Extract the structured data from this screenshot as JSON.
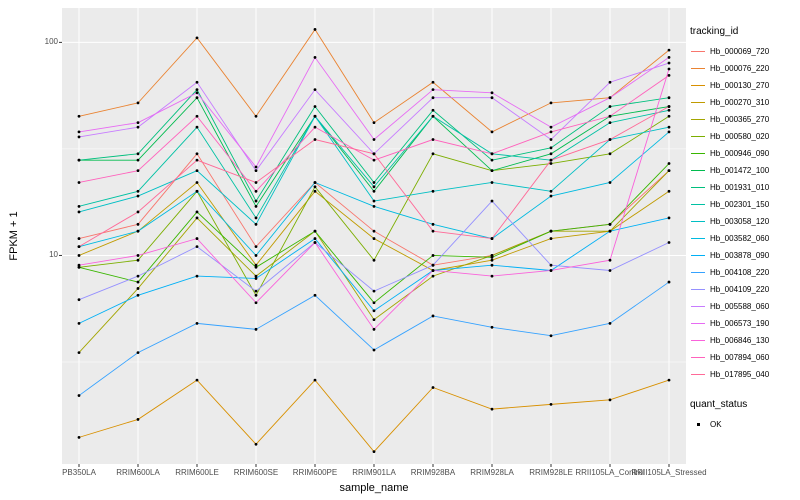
{
  "chart_data": {
    "type": "line",
    "title": "",
    "xlabel": "sample_name",
    "ylabel": "FPKM + 1",
    "y_scale": "log10",
    "ylim": [
      1.05,
      145
    ],
    "y_ticks": [
      "100",
      "10"
    ],
    "y_tick_values": [
      100,
      10
    ],
    "y_minor_gridlines": [
      31.62,
      3.162
    ],
    "grid": "on",
    "panel_bg": "#EBEBEB",
    "grid_color": "#FFFFFF",
    "point_color": "#000000",
    "categories": [
      "PB350LA",
      "RRIM600LA",
      "RRIM600LE",
      "RRIM600SE",
      "RRIM600PE",
      "RRIM901LA",
      "RRIM928BA",
      "RRIM928LA",
      "RRIM928LE",
      "RRII105LA_Control",
      "RRII105LA_Stressed"
    ],
    "legend_title": "tracking_id",
    "legend_position": "right",
    "quant_legend": {
      "title": "quant_status",
      "items": [
        {
          "label": "OK",
          "marker": "point",
          "color": "#000000"
        }
      ]
    },
    "series": [
      {
        "name": "Hb_000069_720",
        "color": "#F8766D",
        "values": [
          12,
          14,
          30,
          11,
          22,
          13,
          9,
          10,
          13,
          14,
          25
        ]
      },
      {
        "name": "Hb_000076_220",
        "color": "#EA8331",
        "values": [
          45,
          52,
          105,
          45,
          115,
          42,
          65,
          38,
          52,
          55,
          92
        ]
      },
      {
        "name": "Hb_000130_270",
        "color": "#D89000",
        "values": [
          1.4,
          1.7,
          2.6,
          1.3,
          2.6,
          1.2,
          2.4,
          1.9,
          2.0,
          2.1,
          2.6
        ]
      },
      {
        "name": "Hb_000270_310",
        "color": "#C09B00",
        "values": [
          10,
          13,
          22,
          9,
          20,
          12,
          8.5,
          9.5,
          12,
          13,
          20
        ]
      },
      {
        "name": "Hb_000365_270",
        "color": "#A3A500",
        "values": [
          3.5,
          7,
          15,
          8,
          13,
          5,
          8,
          10,
          13,
          13,
          25
        ]
      },
      {
        "name": "Hb_000580_020",
        "color": "#7CAE00",
        "values": [
          8.8,
          9.5,
          20,
          6.5,
          21,
          9.5,
          30,
          25,
          27,
          30,
          45
        ]
      },
      {
        "name": "Hb_000946_090",
        "color": "#39B600",
        "values": [
          8.8,
          7.5,
          16,
          8.8,
          13,
          6,
          10,
          9.8,
          13,
          14,
          27
        ]
      },
      {
        "name": "Hb_001472_100",
        "color": "#00BB4E",
        "values": [
          28,
          28,
          55,
          17,
          45,
          20,
          45,
          25,
          30,
          45,
          50
        ]
      },
      {
        "name": "Hb_001931_010",
        "color": "#00BF7D",
        "values": [
          28,
          30,
          60,
          18,
          50,
          22,
          48,
          28,
          32,
          50,
          55
        ]
      },
      {
        "name": "Hb_002301_150",
        "color": "#00C1A3",
        "values": [
          17,
          20,
          40,
          15,
          45,
          21,
          45,
          30,
          28,
          42,
          48
        ]
      },
      {
        "name": "Hb_003058_120",
        "color": "#00BFC4",
        "values": [
          16,
          19,
          25,
          14,
          45,
          18,
          20,
          22,
          20,
          35,
          40
        ]
      },
      {
        "name": "Hb_003582_060",
        "color": "#00BAE0",
        "values": [
          11,
          13,
          20,
          10,
          22,
          17,
          14,
          12,
          19,
          22,
          38
        ]
      },
      {
        "name": "Hb_003878_090",
        "color": "#00B0F6",
        "values": [
          4.8,
          6.5,
          8,
          7.8,
          12,
          5.5,
          8.5,
          9,
          8.5,
          13,
          15
        ]
      },
      {
        "name": "Hb_004108_220",
        "color": "#35A2FF",
        "values": [
          2.2,
          3.5,
          4.8,
          4.5,
          6.5,
          3.6,
          5.2,
          4.6,
          4.2,
          4.8,
          7.5
        ]
      },
      {
        "name": "Hb_004109_220",
        "color": "#9590FF",
        "values": [
          6.2,
          8,
          11,
          6.8,
          11.5,
          6.8,
          9,
          18,
          9,
          8.5,
          11.5
        ]
      },
      {
        "name": "Hb_005588_060",
        "color": "#C77CFF",
        "values": [
          36,
          40,
          65,
          25,
          60,
          30,
          55,
          55,
          35,
          65,
          80
        ]
      },
      {
        "name": "Hb_006573_190",
        "color": "#E76BF3",
        "values": [
          38,
          42,
          58,
          26,
          85,
          35,
          60,
          58,
          40,
          55,
          85
        ]
      },
      {
        "name": "Hb_006846_130",
        "color": "#FA62DB",
        "values": [
          9,
          10,
          12,
          6,
          11.5,
          4.5,
          8.5,
          8,
          8.5,
          9.5,
          75
        ]
      },
      {
        "name": "Hb_007894_060",
        "color": "#FF62BC",
        "values": [
          22,
          25,
          45,
          20,
          40,
          28,
          35,
          30,
          38,
          45,
          70
        ]
      },
      {
        "name": "Hb_017895_040",
        "color": "#FF6A98",
        "values": [
          11,
          16,
          28,
          22,
          35,
          30,
          13,
          12,
          28,
          35,
          50
        ]
      }
    ]
  }
}
